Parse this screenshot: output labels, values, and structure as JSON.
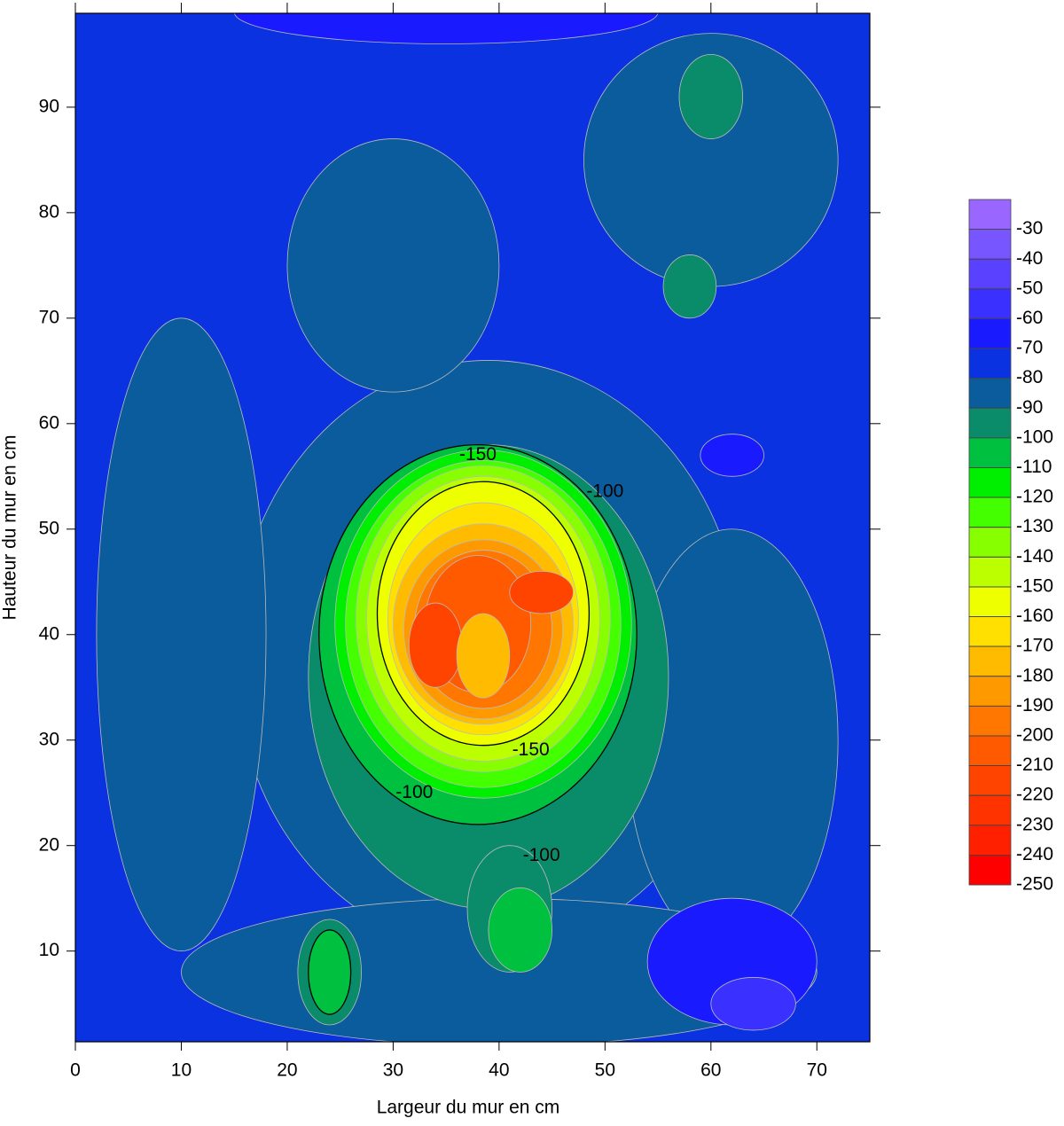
{
  "chart_data": {
    "type": "contour",
    "xlabel": "Largeur du mur en cm",
    "ylabel": "Hauteur du mur en cm",
    "xlim": [
      0,
      75
    ],
    "ylim": [
      1.4,
      98.9
    ],
    "xticks": [
      0,
      10,
      20,
      30,
      40,
      50,
      60,
      70
    ],
    "yticks": [
      10,
      20,
      30,
      40,
      50,
      60,
      70,
      80,
      90
    ],
    "clim": [
      -250,
      -20
    ],
    "cticks": [
      -30,
      -40,
      -50,
      -60,
      -70,
      -80,
      -90,
      -100,
      -110,
      -120,
      -130,
      -140,
      -150,
      -160,
      -170,
      -180,
      -190,
      -200,
      -210,
      -220,
      -230,
      -240,
      -250
    ],
    "colors": [
      "#9966ff",
      "#7755ff",
      "#5a40ff",
      "#3a30ff",
      "#1a1aff",
      "#0a32e0",
      "#0a5c9c",
      "#0a8c6a",
      "#00c040",
      "#00ee00",
      "#44ff00",
      "#88ff00",
      "#bbff00",
      "#eeff00",
      "#ffe000",
      "#ffbb00",
      "#ff9900",
      "#ff7700",
      "#ff5a00",
      "#ff4400",
      "#ff3300",
      "#ff2000",
      "#ff0000"
    ],
    "background": -75,
    "regions": [
      {
        "value": -85,
        "x": 39,
        "y": 38,
        "rx": 24,
        "ry": 28
      },
      {
        "value": -85,
        "x": 10,
        "y": 40,
        "rx": 8,
        "ry": 30
      },
      {
        "value": -85,
        "x": 30,
        "y": 75,
        "rx": 10,
        "ry": 12
      },
      {
        "value": -85,
        "x": 62,
        "y": 30,
        "rx": 10,
        "ry": 20
      },
      {
        "value": -85,
        "x": 60,
        "y": 85,
        "rx": 12,
        "ry": 12
      },
      {
        "value": -85,
        "x": 40,
        "y": 8,
        "rx": 30,
        "ry": 7
      },
      {
        "value": -65,
        "x": 62,
        "y": 9,
        "rx": 8,
        "ry": 6
      },
      {
        "value": -65,
        "x": 62,
        "y": 57,
        "rx": 3,
        "ry": 2
      },
      {
        "value": -65,
        "x": 35,
        "y": 99,
        "rx": 20,
        "ry": 3
      },
      {
        "value": -95,
        "x": 39,
        "y": 36,
        "rx": 17,
        "ry": 22
      },
      {
        "value": -95,
        "x": 41,
        "y": 14,
        "rx": 4,
        "ry": 6
      },
      {
        "value": -95,
        "x": 24,
        "y": 8,
        "rx": 3,
        "ry": 5
      },
      {
        "value": -95,
        "x": 60,
        "y": 91,
        "rx": 3,
        "ry": 4
      },
      {
        "value": -95,
        "x": 58,
        "y": 73,
        "rx": 2.5,
        "ry": 3
      },
      {
        "value": -55,
        "x": 64,
        "y": 5,
        "rx": 4,
        "ry": 2.5
      },
      {
        "value": -105,
        "x": 38,
        "y": 40,
        "rx": 15,
        "ry": 18,
        "outline": true
      },
      {
        "value": -105,
        "x": 24,
        "y": 8,
        "rx": 2,
        "ry": 4,
        "outline": true
      },
      {
        "value": -105,
        "x": 42,
        "y": 12,
        "rx": 3,
        "ry": 4
      },
      {
        "value": -115,
        "x": 38.5,
        "y": 41,
        "rx": 14,
        "ry": 16.5
      },
      {
        "value": -125,
        "x": 38.5,
        "y": 41,
        "rx": 13,
        "ry": 15.5
      },
      {
        "value": -135,
        "x": 38.5,
        "y": 41.5,
        "rx": 12,
        "ry": 14.5
      },
      {
        "value": -145,
        "x": 38.5,
        "y": 41.5,
        "rx": 11,
        "ry": 13.5
      },
      {
        "value": -155,
        "x": 38.5,
        "y": 42,
        "rx": 10,
        "ry": 12.5,
        "outline": true
      },
      {
        "value": -165,
        "x": 38.5,
        "y": 41.5,
        "rx": 9,
        "ry": 11
      },
      {
        "value": -175,
        "x": 38.5,
        "y": 41,
        "rx": 8.5,
        "ry": 9.5
      },
      {
        "value": -185,
        "x": 38.5,
        "y": 40.5,
        "rx": 7.5,
        "ry": 8.5
      },
      {
        "value": -195,
        "x": 38.5,
        "y": 40.5,
        "rx": 6.5,
        "ry": 7.5
      },
      {
        "value": -205,
        "x": 38,
        "y": 41,
        "rx": 5,
        "ry": 6.5
      },
      {
        "value": -215,
        "x": 34,
        "y": 39,
        "rx": 2.5,
        "ry": 4
      },
      {
        "value": -215,
        "x": 44,
        "y": 44,
        "rx": 3,
        "ry": 2
      },
      {
        "value": -175,
        "x": 38.5,
        "y": 38,
        "rx": 2.5,
        "ry": 4
      }
    ],
    "contour_labels": [
      {
        "value": -150,
        "x": 38,
        "y": 57
      },
      {
        "value": -150,
        "x": 43,
        "y": 29
      },
      {
        "value": -100,
        "x": 50,
        "y": 53.5
      },
      {
        "value": -100,
        "x": 32,
        "y": 25
      },
      {
        "value": -100,
        "x": 44,
        "y": 19
      }
    ]
  }
}
